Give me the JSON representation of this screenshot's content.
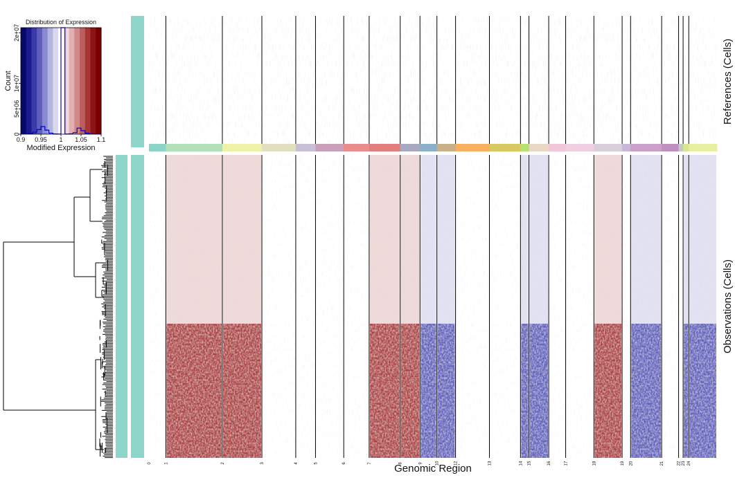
{
  "chart_data": [
    {
      "type": "bar",
      "title": "Distribution of Expression",
      "xlabel": "Modified Expression",
      "ylabel": "Count",
      "xlim": [
        0.9,
        1.1
      ],
      "ylim": [
        0,
        21000000
      ],
      "x_ticks": [
        "0.9",
        "0.95",
        "1",
        "1.05",
        "1.1"
      ],
      "y_ticks": [
        {
          "label": "0",
          "value": 0
        },
        {
          "label": "5e+06",
          "value": 5000000
        },
        {
          "label": "1e+07",
          "value": 10000000
        },
        {
          "label": "2e+07",
          "value": 20000000
        }
      ],
      "color_scale": [
        "#08086b",
        "#1a1a8c",
        "#3a3aa8",
        "#5f5fbd",
        "#8a8ad0",
        "#b4b4e2",
        "#d8d8f0",
        "#ffffff",
        "#f0d8d8",
        "#e2b0b0",
        "#d08888",
        "#bd5e5e",
        "#a83434",
        "#8c1414",
        "#7a0000"
      ],
      "bin_edges": [
        0.9,
        0.91,
        0.92,
        0.93,
        0.94,
        0.95,
        0.96,
        0.97,
        0.98,
        0.99,
        1.0,
        1.01,
        1.02,
        1.03,
        1.04,
        1.05,
        1.06,
        1.07,
        1.08,
        1.09,
        1.1
      ],
      "counts": [
        50000,
        80000,
        150000,
        400000,
        900000,
        1500000,
        800000,
        200000,
        60000,
        30000,
        21000000,
        30000,
        80000,
        300000,
        1200000,
        700000,
        200000,
        80000,
        40000,
        20000
      ],
      "line_color": "#0000cc"
    },
    {
      "type": "heatmap",
      "xlabel": "Genomic Region",
      "right_labels": {
        "references": "References (Cells)",
        "observations": "Observations (Cells)"
      },
      "chromosome_labels": [
        "0",
        "1",
        "2",
        "3",
        "4",
        "5",
        "6",
        "7",
        "8",
        "9",
        "10",
        "12",
        "13",
        "14",
        "15",
        "16",
        "17",
        "18",
        "19",
        "20",
        "21",
        "22",
        "23",
        "24"
      ],
      "chromosome_fractions": [
        0.03,
        0.1,
        0.07,
        0.06,
        0.035,
        0.05,
        0.045,
        0.055,
        0.035,
        0.03,
        0.033,
        0.06,
        0.055,
        0.015,
        0.035,
        0.03,
        0.05,
        0.05,
        0.015,
        0.055,
        0.03,
        0.008,
        0.01,
        0.05
      ],
      "chromosome_colors": [
        "#8dd3c7",
        "#b3e0b8",
        "#eef2a8",
        "#e0e0c0",
        "#c8c0d4",
        "#c8a0b8",
        "#e88c8c",
        "#e27e7e",
        "#a8a8c0",
        "#8cb0c8",
        "#c8b088",
        "#f7b060",
        "#d8c860",
        "#b8e070",
        "#e8d8c8",
        "#f0c8d8",
        "#eed0e0",
        "#d8d0d8",
        "#c8b8d8",
        "#c8a0c8",
        "#c090c0",
        "#c8c8c8",
        "#d8e890",
        "#e6f0a0"
      ],
      "annotation_color": "#8ed6c9",
      "dendrogram_color": "#000000",
      "reference_pattern": "mostly white with faint scattered red/blue speckle",
      "observation_patterns": {
        "gains_red": [
          "1",
          "2",
          "7",
          "8",
          "18"
        ],
        "losses_blue": [
          "9",
          "10",
          "14",
          "15",
          "20",
          "23",
          "24"
        ],
        "split_fraction_upper": 0.5
      }
    }
  ]
}
